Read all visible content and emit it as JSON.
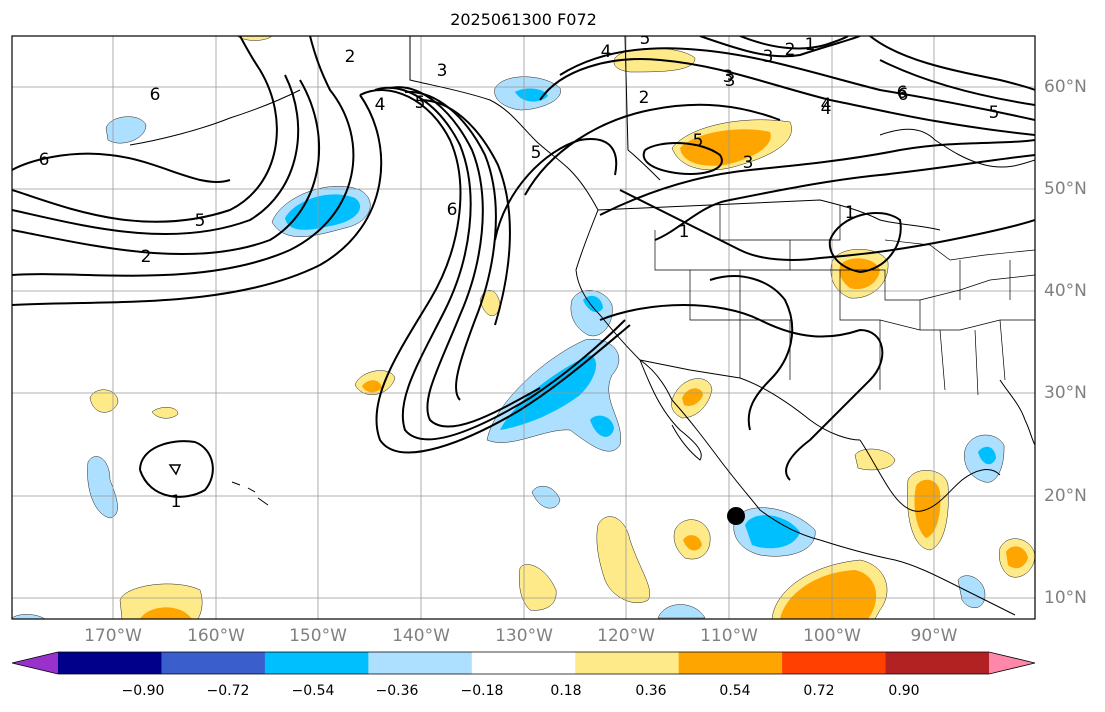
{
  "title": "2025061300 F072",
  "map": {
    "projection": "cylindrical",
    "region": "North Pacific / North America",
    "lon_range": [
      -179,
      -79
    ],
    "lat_range": [
      8,
      65
    ],
    "gridlines": true,
    "lon_ticks": [
      "170°W",
      "160°W",
      "150°W",
      "140°W",
      "130°W",
      "120°W",
      "110°W",
      "100°W",
      "90°W"
    ],
    "lat_ticks": [
      "10°N",
      "20°N",
      "30°N",
      "40°N",
      "50°N",
      "60°N"
    ],
    "contour_labels": [
      "2",
      "3",
      "4",
      "5",
      "6",
      "1",
      "5",
      "6",
      "2",
      "5",
      "4",
      "3",
      "2",
      "3",
      "4",
      "5",
      "6",
      "5",
      "3",
      "2",
      "1",
      "1",
      "1",
      "5",
      "6",
      "3",
      "4",
      "6"
    ],
    "marker": "black dot near 109°W, 18°N"
  },
  "colorbar": {
    "extend": "both",
    "ticks": [
      "−0.90",
      "−0.72",
      "−0.54",
      "−0.36",
      "−0.18",
      "0.18",
      "0.36",
      "0.54",
      "0.72",
      "0.90"
    ],
    "colors": [
      "#9932CC",
      "#00008B",
      "#3A5FCD",
      "#00BFFF",
      "#ADDFFF",
      "#FFFFFF",
      "#FFEA8A",
      "#FFA500",
      "#FF4000",
      "#B22222",
      "#FF88AA"
    ]
  }
}
